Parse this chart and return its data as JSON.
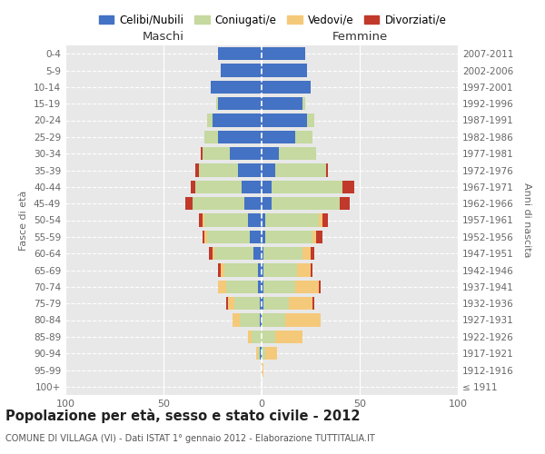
{
  "age_groups": [
    "100+",
    "95-99",
    "90-94",
    "85-89",
    "80-84",
    "75-79",
    "70-74",
    "65-69",
    "60-64",
    "55-59",
    "50-54",
    "45-49",
    "40-44",
    "35-39",
    "30-34",
    "25-29",
    "20-24",
    "15-19",
    "10-14",
    "5-9",
    "0-4"
  ],
  "birth_years": [
    "≤ 1911",
    "1912-1916",
    "1917-1921",
    "1922-1926",
    "1927-1931",
    "1932-1936",
    "1937-1941",
    "1942-1946",
    "1947-1951",
    "1952-1956",
    "1957-1961",
    "1962-1966",
    "1967-1971",
    "1972-1976",
    "1977-1981",
    "1982-1986",
    "1987-1991",
    "1992-1996",
    "1997-2001",
    "2002-2006",
    "2007-2011"
  ],
  "male": {
    "celibi": [
      0,
      0,
      1,
      0,
      1,
      1,
      2,
      2,
      4,
      6,
      7,
      9,
      10,
      12,
      16,
      22,
      25,
      22,
      26,
      21,
      22
    ],
    "coniugati": [
      0,
      0,
      1,
      5,
      10,
      13,
      16,
      17,
      20,
      22,
      22,
      26,
      24,
      20,
      14,
      7,
      3,
      1,
      0,
      0,
      0
    ],
    "vedovi": [
      0,
      0,
      1,
      2,
      4,
      3,
      4,
      2,
      1,
      1,
      1,
      0,
      0,
      0,
      0,
      0,
      0,
      0,
      0,
      0,
      0
    ],
    "divorziati": [
      0,
      0,
      0,
      0,
      0,
      1,
      0,
      1,
      2,
      1,
      2,
      4,
      2,
      2,
      1,
      0,
      0,
      0,
      0,
      0,
      0
    ]
  },
  "female": {
    "nubili": [
      0,
      0,
      0,
      0,
      0,
      1,
      1,
      1,
      1,
      2,
      2,
      5,
      5,
      7,
      9,
      17,
      23,
      21,
      25,
      23,
      22
    ],
    "coniugate": [
      0,
      0,
      2,
      7,
      12,
      13,
      16,
      17,
      20,
      24,
      27,
      35,
      36,
      26,
      19,
      9,
      4,
      1,
      0,
      0,
      0
    ],
    "vedove": [
      0,
      1,
      6,
      14,
      18,
      12,
      12,
      7,
      4,
      2,
      2,
      0,
      0,
      0,
      0,
      0,
      0,
      0,
      0,
      0,
      0
    ],
    "divorziate": [
      0,
      0,
      0,
      0,
      0,
      1,
      1,
      1,
      2,
      3,
      3,
      5,
      6,
      1,
      0,
      0,
      0,
      0,
      0,
      0,
      0
    ]
  },
  "colors": {
    "celibi": "#4472c4",
    "coniugati": "#c5d9a0",
    "vedovi": "#f5c97a",
    "divorziati": "#c0392b"
  },
  "xlim": 100,
  "title": "Popolazione per età, sesso e stato civile - 2012",
  "subtitle": "COMUNE DI VILLAGA (VI) - Dati ISTAT 1° gennaio 2012 - Elaborazione TUTTITALIA.IT",
  "legend_labels": [
    "Celibi/Nubili",
    "Coniugati/e",
    "Vedovi/e",
    "Divorziati/e"
  ],
  "ylabel_left": "Fasce di età",
  "ylabel_right": "Anni di nascita",
  "maschi_label": "Maschi",
  "femmine_label": "Femmine"
}
